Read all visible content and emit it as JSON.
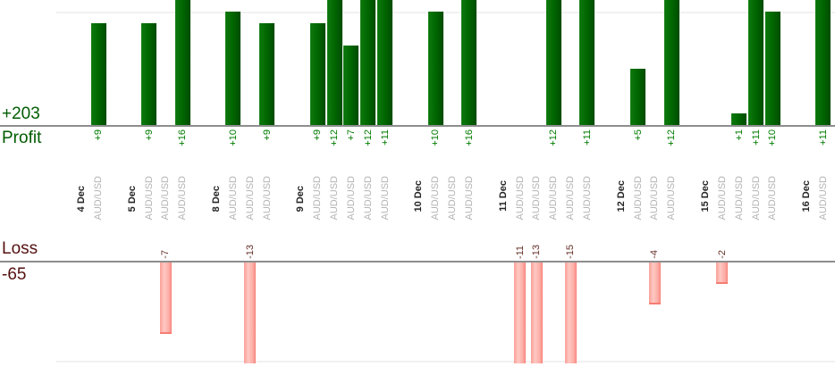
{
  "chart_data": {
    "type": "bar",
    "title": "",
    "instrument": "AUD/USD",
    "profit_axis_label": "Profit",
    "profit_total": "+203",
    "loss_axis_label": "Loss",
    "loss_total": "-65",
    "groups": [
      {
        "date": "4 Dec",
        "trades": [
          9
        ]
      },
      {
        "date": "5 Dec",
        "trades": [
          9,
          -7,
          16
        ]
      },
      {
        "date": "8 Dec",
        "trades": [
          10,
          -13,
          9
        ]
      },
      {
        "date": "9 Dec",
        "trades": [
          9,
          12,
          7,
          12,
          11
        ]
      },
      {
        "date": "10 Dec",
        "trades": [
          10,
          0,
          16
        ]
      },
      {
        "date": "11 Dec",
        "trades": [
          -11,
          -13,
          12,
          -15,
          11
        ]
      },
      {
        "date": "12 Dec",
        "trades": [
          5,
          -4,
          12
        ]
      },
      {
        "date": "15 Dec",
        "trades": [
          -2,
          1,
          11,
          10
        ]
      },
      {
        "date": "16 Dec",
        "trades": [
          11
        ]
      }
    ],
    "layout_hints": {
      "profit_gridline_value": 10,
      "loss_gridline_value": -10,
      "profit_bars_clipped_above": 11,
      "loss_bars_clipped_below": -10,
      "value_labels_rotated_90deg": true,
      "legend": "none"
    },
    "colors": {
      "profit_bar": "#016701",
      "loss_bar": "#ffb3ad",
      "profit_value_text": "#007c00",
      "loss_value_text": "#653029",
      "profit_title_text": "#005c00",
      "loss_title_text": "#551111",
      "date_text": "#262626",
      "instrument_text": "#b4b4b4",
      "axis_line": "#8d8d8d",
      "grid_line": "#f1f1f1"
    }
  }
}
